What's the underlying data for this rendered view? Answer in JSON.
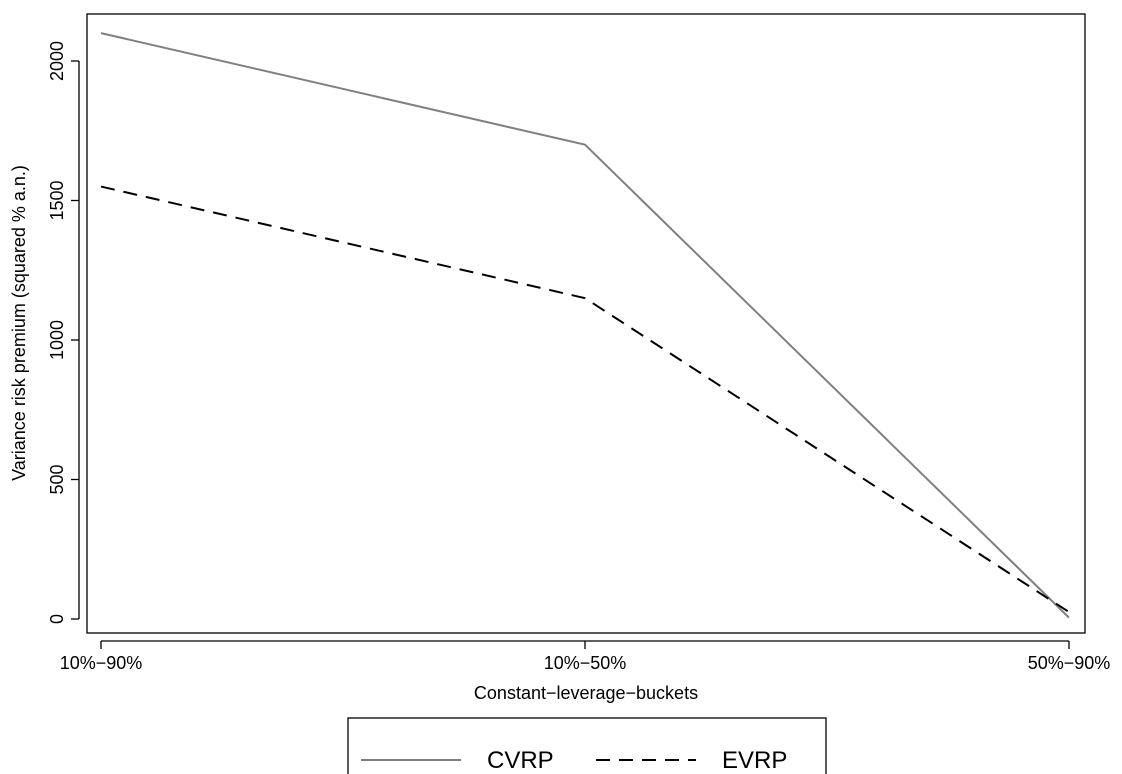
{
  "chart_data": {
    "type": "line",
    "title": "",
    "xlabel": "Constant−leverage−buckets",
    "ylabel": "Variance risk premium (squared % a.n.)",
    "categories": [
      "10%−90%",
      "10%−50%",
      "50%−90%"
    ],
    "yticks": [
      0,
      500,
      1000,
      1500,
      2000
    ],
    "ylim": [
      -50,
      2180
    ],
    "grid": false,
    "legend_position": "bottom",
    "series": [
      {
        "name": "CVRP",
        "values": [
          2100,
          1700,
          5
        ],
        "color": "#808080",
        "style": "solid"
      },
      {
        "name": "EVRP",
        "values": [
          1550,
          1150,
          25
        ],
        "color": "#000000",
        "style": "dashed"
      }
    ]
  }
}
